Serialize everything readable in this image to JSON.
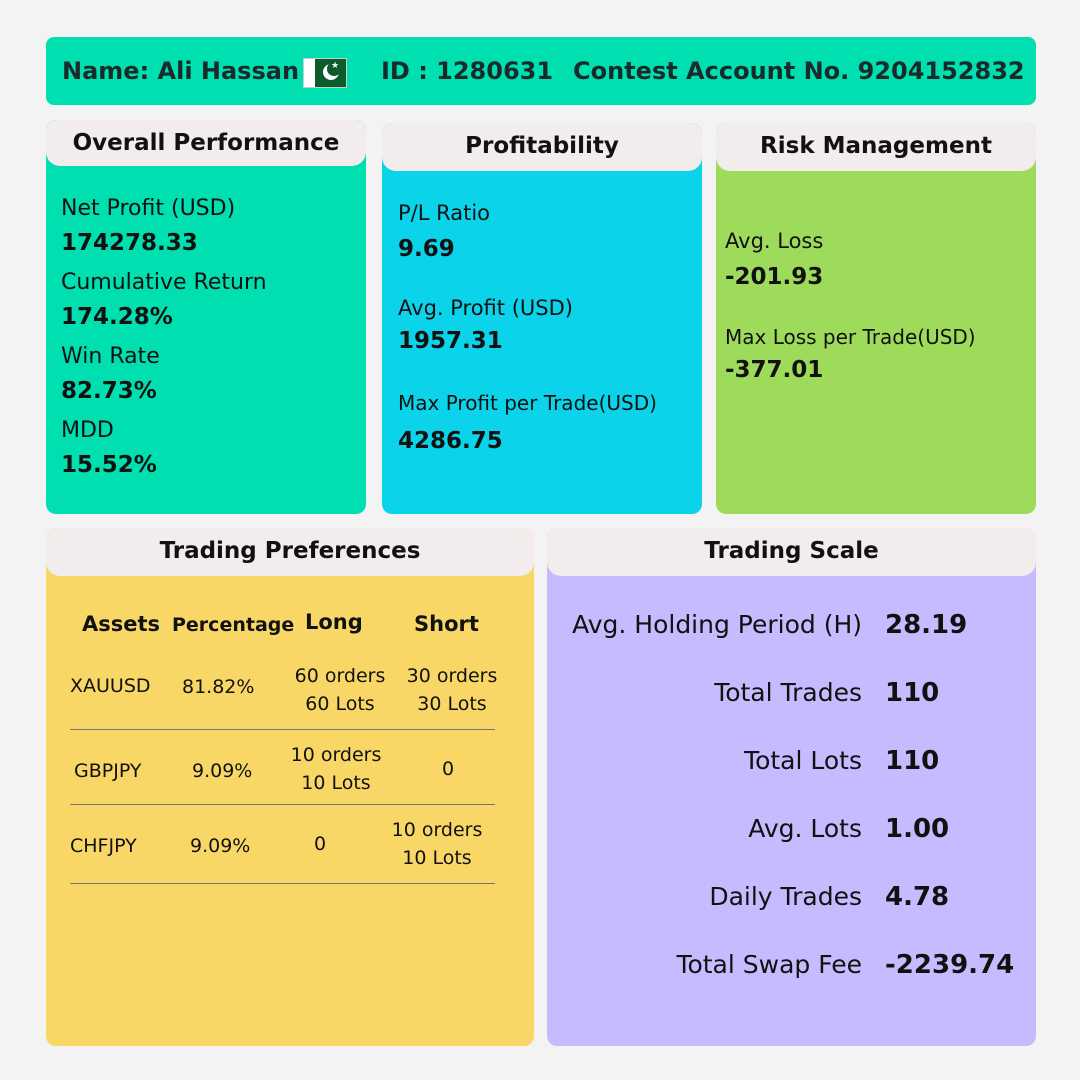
{
  "header": {
    "name": "Name: Ali Hassan",
    "id": "ID : 1280631",
    "account": "Contest Account No. 9204152832"
  },
  "overall": {
    "title": "Overall Performance",
    "items": [
      {
        "label": "Net Profit (USD)",
        "value": "174278.33"
      },
      {
        "label": "Cumulative Return",
        "value": "174.28%"
      },
      {
        "label": "Win Rate",
        "value": "82.73%"
      },
      {
        "label": "MDD",
        "value": "15.52%"
      }
    ]
  },
  "profitability": {
    "title": "Profitability",
    "items": [
      {
        "label": "P/L Ratio",
        "value": "9.69"
      },
      {
        "label": "Avg. Profit (USD)",
        "value": "1957.31"
      },
      {
        "label": "Max Profit per Trade(USD)",
        "value": "4286.75"
      }
    ]
  },
  "risk": {
    "title": "Risk Management",
    "items": [
      {
        "label": "Avg. Loss",
        "value": "-201.93"
      },
      {
        "label": "Max Loss per Trade(USD)",
        "value": "-377.01"
      }
    ]
  },
  "preferences": {
    "title": "Trading Preferences",
    "columns": [
      "Assets",
      "Percentage",
      "Long",
      "Short"
    ],
    "rows": [
      {
        "asset": "XAUUSD",
        "percentage": "81.82%",
        "long1": "60 orders",
        "long2": "60 Lots",
        "short1": "30 orders",
        "short2": "30 Lots"
      },
      {
        "asset": "GBPJPY",
        "percentage": "9.09%",
        "long1": "10 orders",
        "long2": "10 Lots",
        "short1": "0",
        "short2": ""
      },
      {
        "asset": "CHFJPY",
        "percentage": "9.09%",
        "long1": "0",
        "long2": "",
        "short1": "10 orders",
        "short2": "10 Lots"
      }
    ]
  },
  "scale": {
    "title": "Trading Scale",
    "items": [
      {
        "label": "Avg. Holding Period (H)",
        "value": "28.19"
      },
      {
        "label": "Total Trades",
        "value": "110"
      },
      {
        "label": "Total Lots",
        "value": "110"
      },
      {
        "label": "Avg. Lots",
        "value": "1.00"
      },
      {
        "label": "Daily Trades",
        "value": "4.78"
      },
      {
        "label": "Total Swap Fee",
        "value": "-2239.74"
      }
    ]
  },
  "colors": {
    "header": "#00dfb0",
    "overall": "#00dfb0",
    "profitability": "#0bd3ea",
    "risk": "#9fdb5a",
    "preferences": "#f8d766",
    "scale": "#c7bbff",
    "title_bar": "#f3ecec"
  },
  "icons": {
    "flag": "pakistan-flag-icon"
  }
}
